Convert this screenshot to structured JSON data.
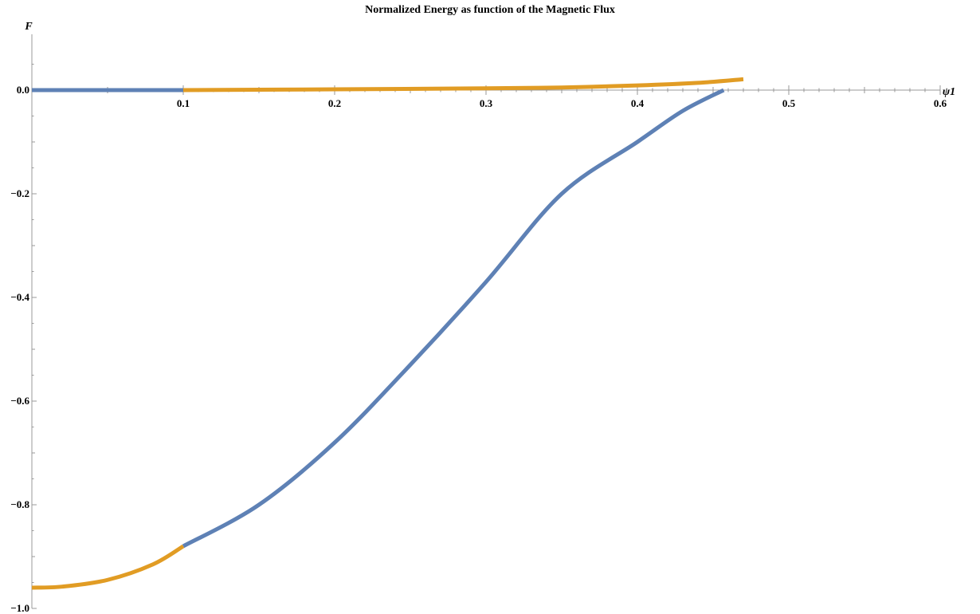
{
  "chart_data": {
    "type": "line",
    "title": "Normalized Energy as function of the Magnetic Flux",
    "xlabel": "ψ1",
    "ylabel": "F",
    "xlim": [
      0,
      0.6
    ],
    "ylim": [
      -1.0,
      0.1
    ],
    "grid": false,
    "x_ticks": [
      0.1,
      0.2,
      0.3,
      0.4,
      0.5,
      0.6
    ],
    "x_tick_labels": [
      "0.1",
      "0.2",
      "0.3",
      "0.4",
      "0.5",
      "0.6"
    ],
    "y_ticks": [
      0.0,
      -0.2,
      -0.4,
      -0.6,
      -0.8,
      -1.0
    ],
    "y_tick_labels": [
      "0.0",
      "−0.2",
      "−0.4",
      "−0.6",
      "−0.8",
      "−1.0"
    ],
    "series": [
      {
        "color": "#5e81b5",
        "segments": [
          {
            "x": [
              0.0,
              0.1
            ],
            "y": [
              0.0,
              0.0
            ]
          },
          {
            "x": [
              0.1,
              0.15,
              0.2,
              0.25,
              0.3,
              0.35,
              0.4,
              0.43,
              0.457
            ],
            "y": [
              -0.88,
              -0.8,
              -0.68,
              -0.53,
              -0.37,
              -0.2,
              -0.1,
              -0.04,
              0.0
            ]
          }
        ]
      },
      {
        "color": "#e19c24",
        "segments": [
          {
            "x": [
              0.0,
              0.02,
              0.05,
              0.08,
              0.1
            ],
            "y": [
              -0.96,
              -0.958,
              -0.945,
              -0.915,
              -0.88
            ]
          },
          {
            "x": [
              0.1,
              0.2,
              0.3,
              0.35,
              0.4,
              0.44,
              0.47
            ],
            "y": [
              0.0,
              0.0015,
              0.0035,
              0.005,
              0.009,
              0.014,
              0.021
            ]
          }
        ]
      }
    ]
  }
}
